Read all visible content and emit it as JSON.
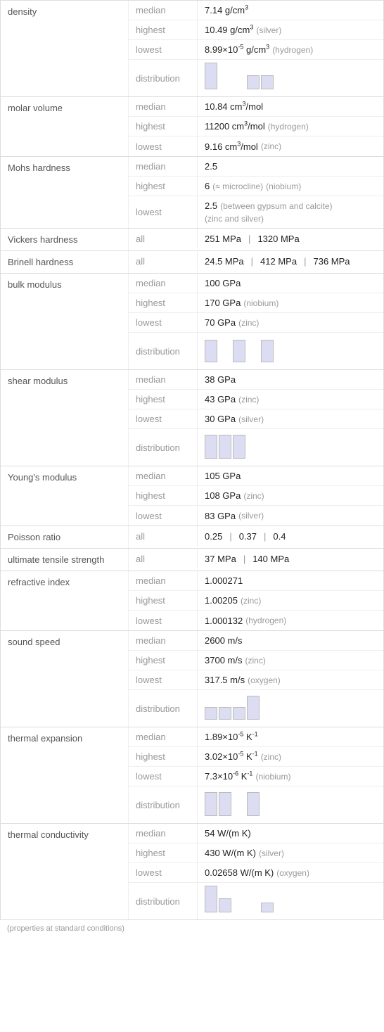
{
  "footnote": "(properties at standard conditions)",
  "categories": [
    {
      "label": "density",
      "rows": [
        {
          "stat": "median",
          "value_html": "7.14 g/cm<sup>3</sup>"
        },
        {
          "stat": "highest",
          "value_html": "10.49 g/cm<sup>3</sup>",
          "paren": "(silver)"
        },
        {
          "stat": "lowest",
          "value_html": "8.99×10<sup>-5</sup> g/cm<sup>3</sup>",
          "paren": "(hydrogen)"
        },
        {
          "stat": "distribution",
          "bars": [
            38,
            0,
            0,
            20,
            20,
            0
          ]
        }
      ]
    },
    {
      "label": "molar volume",
      "rows": [
        {
          "stat": "median",
          "value_html": "10.84 cm<sup>3</sup>/mol"
        },
        {
          "stat": "highest",
          "value_html": "11200 cm<sup>3</sup>/mol",
          "paren": "(hydrogen)"
        },
        {
          "stat": "lowest",
          "value_html": "9.16 cm<sup>3</sup>/mol",
          "paren": "(zinc)"
        }
      ]
    },
    {
      "label": "Mohs hardness",
      "rows": [
        {
          "stat": "median",
          "value_html": "2.5"
        },
        {
          "stat": "highest",
          "value_html": "6",
          "paren_small": "(≈ microcline)",
          "paren": "(niobium)"
        },
        {
          "stat": "lowest",
          "value_html": "2.5",
          "paren_small": "(between gypsum and calcite)",
          "paren": "(zinc and silver)"
        }
      ]
    },
    {
      "label": "Vickers hardness",
      "rows": [
        {
          "stat": "all",
          "list": [
            "251 MPa",
            "1320 MPa"
          ]
        }
      ]
    },
    {
      "label": "Brinell hardness",
      "rows": [
        {
          "stat": "all",
          "list": [
            "24.5 MPa",
            "412 MPa",
            "736 MPa"
          ]
        }
      ]
    },
    {
      "label": "bulk modulus",
      "rows": [
        {
          "stat": "median",
          "value_html": "100 GPa"
        },
        {
          "stat": "highest",
          "value_html": "170 GPa",
          "paren": "(niobium)"
        },
        {
          "stat": "lowest",
          "value_html": "70 GPa",
          "paren": "(zinc)"
        },
        {
          "stat": "distribution",
          "bars": [
            32,
            0,
            32,
            0,
            32
          ]
        }
      ]
    },
    {
      "label": "shear modulus",
      "rows": [
        {
          "stat": "median",
          "value_html": "38 GPa"
        },
        {
          "stat": "highest",
          "value_html": "43 GPa",
          "paren": "(zinc)"
        },
        {
          "stat": "lowest",
          "value_html": "30 GPa",
          "paren": "(silver)"
        },
        {
          "stat": "distribution",
          "bars": [
            34,
            34,
            34
          ]
        }
      ]
    },
    {
      "label": "Young's modulus",
      "rows": [
        {
          "stat": "median",
          "value_html": "105 GPa"
        },
        {
          "stat": "highest",
          "value_html": "108 GPa",
          "paren": "(zinc)"
        },
        {
          "stat": "lowest",
          "value_html": "83 GPa",
          "paren": "(silver)"
        }
      ]
    },
    {
      "label": "Poisson ratio",
      "rows": [
        {
          "stat": "all",
          "list": [
            "0.25",
            "0.37",
            "0.4"
          ]
        }
      ]
    },
    {
      "label": "ultimate tensile strength",
      "rows": [
        {
          "stat": "all",
          "list": [
            "37 MPa",
            "140 MPa"
          ]
        }
      ]
    },
    {
      "label": "refractive index",
      "rows": [
        {
          "stat": "median",
          "value_html": "1.000271"
        },
        {
          "stat": "highest",
          "value_html": "1.00205",
          "paren": "(zinc)"
        },
        {
          "stat": "lowest",
          "value_html": "1.000132",
          "paren": "(hydrogen)"
        }
      ]
    },
    {
      "label": "sound speed",
      "rows": [
        {
          "stat": "median",
          "value_html": "2600 m/s"
        },
        {
          "stat": "highest",
          "value_html": "3700 m/s",
          "paren": "(zinc)"
        },
        {
          "stat": "lowest",
          "value_html": "317.5 m/s",
          "paren": "(oxygen)"
        },
        {
          "stat": "distribution",
          "bars": [
            18,
            18,
            18,
            34
          ]
        }
      ]
    },
    {
      "label": "thermal expansion",
      "rows": [
        {
          "stat": "median",
          "value_html": "1.89×10<sup>-5</sup> K<sup>-1</sup>"
        },
        {
          "stat": "highest",
          "value_html": "3.02×10<sup>-5</sup> K<sup>-1</sup>",
          "paren": "(zinc)"
        },
        {
          "stat": "lowest",
          "value_html": "7.3×10<sup>-6</sup> K<sup>-1</sup>",
          "paren": "(niobium)"
        },
        {
          "stat": "distribution",
          "bars": [
            34,
            34,
            0,
            34
          ]
        }
      ]
    },
    {
      "label": "thermal conductivity",
      "rows": [
        {
          "stat": "median",
          "value_html": "54 W/(m K)"
        },
        {
          "stat": "highest",
          "value_html": "430 W/(m K)",
          "paren": "(silver)"
        },
        {
          "stat": "lowest",
          "value_html": "0.02658 W/(m K)",
          "paren": "(oxygen)"
        },
        {
          "stat": "distribution",
          "bars": [
            38,
            20,
            0,
            0,
            14
          ]
        }
      ]
    }
  ],
  "style": {
    "bar_color": "#dcddf2",
    "bar_border": "#b8b8d0",
    "text_color": "#222222",
    "muted_color": "#999999",
    "border_color": "#dddddd"
  }
}
